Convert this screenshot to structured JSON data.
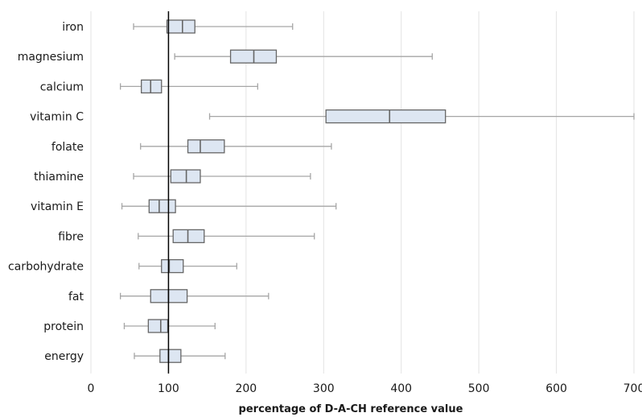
{
  "chart_data": {
    "type": "boxplot",
    "title": "",
    "xlabel": "percentage of D-A-CH reference value",
    "ylabel": "",
    "xlim": [
      0,
      700
    ],
    "xticks": [
      0,
      100,
      200,
      300,
      400,
      500,
      600,
      700
    ],
    "grid": "vertical",
    "reference_line": 100,
    "categories": [
      {
        "label": "iron",
        "whisker_low": 55,
        "q1": 98,
        "median": 118,
        "q3": 134,
        "whisker_high": 260
      },
      {
        "label": "magnesium",
        "whisker_low": 108,
        "q1": 180,
        "median": 210,
        "q3": 239,
        "whisker_high": 440
      },
      {
        "label": "calcium",
        "whisker_low": 38,
        "q1": 65,
        "median": 77,
        "q3": 91,
        "whisker_high": 215
      },
      {
        "label": "vitamin C",
        "whisker_low": 153,
        "q1": 303,
        "median": 385,
        "q3": 457,
        "whisker_high": 700
      },
      {
        "label": "folate",
        "whisker_low": 64,
        "q1": 125,
        "median": 141,
        "q3": 172,
        "whisker_high": 310
      },
      {
        "label": "thiamine",
        "whisker_low": 55,
        "q1": 103,
        "median": 123,
        "q3": 141,
        "whisker_high": 283
      },
      {
        "label": "vitamin E",
        "whisker_low": 40,
        "q1": 75,
        "median": 88,
        "q3": 109,
        "whisker_high": 316
      },
      {
        "label": "fibre",
        "whisker_low": 61,
        "q1": 106,
        "median": 125,
        "q3": 146,
        "whisker_high": 288
      },
      {
        "label": "carbohydrate",
        "whisker_low": 62,
        "q1": 91,
        "median": 101,
        "q3": 119,
        "whisker_high": 188
      },
      {
        "label": "fat",
        "whisker_low": 38,
        "q1": 77,
        "median": 100,
        "q3": 124,
        "whisker_high": 229
      },
      {
        "label": "protein",
        "whisker_low": 43,
        "q1": 74,
        "median": 90,
        "q3": 99,
        "whisker_high": 160
      },
      {
        "label": "energy",
        "whisker_low": 56,
        "q1": 89,
        "median": 100,
        "q3": 116,
        "whisker_high": 173
      }
    ],
    "colors": {
      "box_fill": "#dde6f2",
      "box_stroke": "#666666",
      "whisker": "#a6a6a6",
      "grid": "#e3e3e3",
      "reference_line": "#000000",
      "text": "#1a1a1a"
    }
  }
}
